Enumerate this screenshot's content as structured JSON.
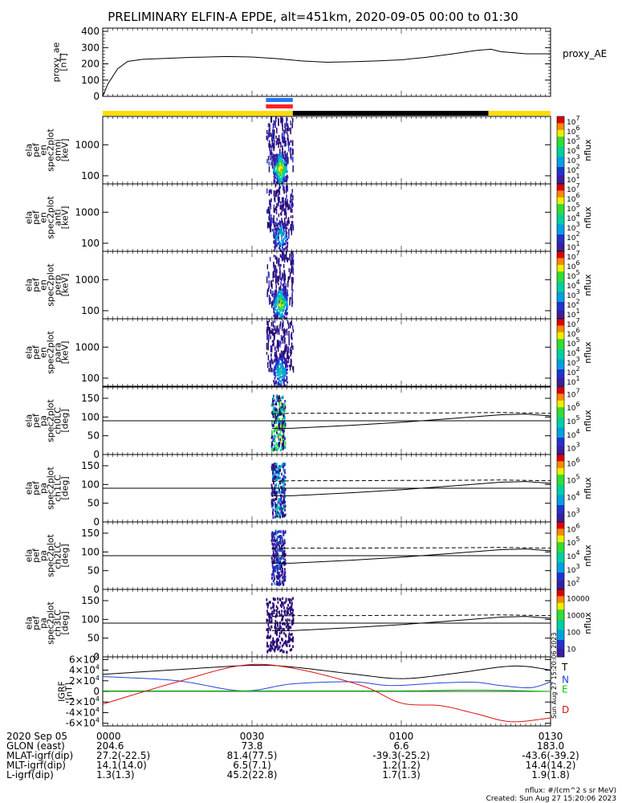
{
  "chart_data": {
    "type": "spectrogram",
    "title": "PRELIMINARY ELFIN-A EPDE, alt=451km, 2020-09-05 00:00 to 01:30",
    "time_axis": {
      "ticks": [
        "0000",
        "0030",
        "0100",
        "0130"
      ],
      "range_min": [
        0,
        90
      ]
    },
    "proxy_ae": {
      "ylabel": "proxy_ae\n[nT]",
      "legend": "proxy_AE",
      "yticks": [
        "0",
        "100",
        "200",
        "300",
        "400"
      ],
      "ylim": [
        0,
        420
      ],
      "points": [
        [
          0,
          0
        ],
        [
          1,
          75
        ],
        [
          3,
          170
        ],
        [
          5,
          215
        ],
        [
          8,
          228
        ],
        [
          12,
          233
        ],
        [
          18,
          240
        ],
        [
          25,
          245
        ],
        [
          30,
          242
        ],
        [
          35,
          232
        ],
        [
          40,
          218
        ],
        [
          45,
          210
        ],
        [
          50,
          213
        ],
        [
          55,
          218
        ],
        [
          60,
          225
        ],
        [
          65,
          240
        ],
        [
          70,
          260
        ],
        [
          75,
          282
        ],
        [
          78,
          290
        ],
        [
          80,
          275
        ],
        [
          85,
          262
        ],
        [
          90,
          262
        ]
      ]
    },
    "status_bar": {
      "segments": [
        {
          "from": 0,
          "to": 38.2,
          "color": "#ffdd00"
        },
        {
          "from": 38.2,
          "to": 77.5,
          "color": "#000000"
        },
        {
          "from": 77.5,
          "to": 90,
          "color": "#ffdd00"
        }
      ],
      "markers": [
        {
          "from": 32.8,
          "to": 38.2,
          "color": "#2277ff"
        },
        {
          "from": 32.8,
          "to": 38.2,
          "color": "#ff2020"
        }
      ]
    },
    "energy_panels": [
      {
        "label": [
          "ela",
          "pef",
          "en",
          "spec2plot",
          "omni",
          "[keV]"
        ],
        "yticks": [
          "100",
          "1000"
        ],
        "cbar_ticks": [
          "10^1",
          "10^2",
          "10^3",
          "10^4",
          "10^5",
          "10^6",
          "10^7"
        ],
        "cbar_label": "nflux"
      },
      {
        "label": [
          "ela",
          "pef",
          "en",
          "spec2plot",
          "anti",
          "[keV]"
        ],
        "yticks": [
          "100",
          "1000"
        ],
        "cbar_ticks": [
          "10^1",
          "10^2",
          "10^3",
          "10^4",
          "10^5",
          "10^6",
          "10^7"
        ],
        "cbar_label": "nflux"
      },
      {
        "label": [
          "ela",
          "pef",
          "en",
          "spec2plot",
          "perp",
          "[keV]"
        ],
        "yticks": [
          "100",
          "1000"
        ],
        "cbar_ticks": [
          "10^1",
          "10^2",
          "10^3",
          "10^4",
          "10^5",
          "10^6",
          "10^7"
        ],
        "cbar_label": "nflux"
      },
      {
        "label": [
          "ela",
          "pef",
          "en",
          "spec2plot",
          "para",
          "[keV]"
        ],
        "yticks": [
          "100",
          "1000"
        ],
        "cbar_ticks": [
          "10^1",
          "10^2",
          "10^3",
          "10^4",
          "10^5",
          "10^6",
          "10^7"
        ],
        "cbar_label": "nflux"
      }
    ],
    "pitch_panels": [
      {
        "label": [
          "ela",
          "pef",
          "pa",
          "spec2plot",
          "ch0LC",
          "[deg]"
        ],
        "yticks": [
          "0",
          "50",
          "100",
          "150"
        ],
        "cbar_ticks": [
          "10^3",
          "10^4",
          "10^5",
          "10^6",
          "10^7"
        ],
        "cbar_label": "nflux"
      },
      {
        "label": [
          "ela",
          "pef",
          "pa",
          "spec2plot",
          "ch1LC",
          "[deg]"
        ],
        "yticks": [
          "0",
          "50",
          "100",
          "150"
        ],
        "cbar_ticks": [
          "10^3",
          "10^4",
          "10^5",
          "10^6"
        ],
        "cbar_label": "nflux"
      },
      {
        "label": [
          "ela",
          "pef",
          "pa",
          "spec2plot",
          "ch2LC",
          "[deg]"
        ],
        "yticks": [
          "0",
          "50",
          "100",
          "150"
        ],
        "cbar_ticks": [
          "10^2",
          "10^3",
          "10^4",
          "10^5",
          "10^6"
        ],
        "cbar_label": "nflux"
      },
      {
        "label": [
          "ela",
          "pef",
          "pa",
          "spec2plot",
          "ch3LC",
          "[deg]"
        ],
        "yticks": [
          "0",
          "50",
          "100",
          "150"
        ],
        "cbar_ticks": [
          "10",
          "100",
          "1000",
          "10000"
        ],
        "cbar_label": "nflux"
      }
    ],
    "loss_cone": {
      "solid": [
        [
          34,
          70
        ],
        [
          38,
          70
        ],
        [
          50,
          78
        ],
        [
          60,
          86
        ],
        [
          70,
          96
        ],
        [
          80,
          106
        ],
        [
          85,
          108
        ],
        [
          90,
          103
        ]
      ],
      "dashed": [
        [
          34,
          108
        ],
        [
          38,
          110
        ],
        [
          50,
          110
        ],
        [
          60,
          111
        ],
        [
          70,
          111
        ],
        [
          80,
          112
        ],
        [
          90,
          110
        ]
      ]
    },
    "irf": {
      "ylabel": "IGRF\n[nT]",
      "yticks": [
        "6×10^4",
        "4×10^4",
        "2×10^4",
        "0",
        "-2×10^4",
        "-4×10^4",
        "-6×10^4"
      ],
      "ylim": [
        -65000,
        65000
      ],
      "series": [
        {
          "name": "T",
          "color": "#000000",
          "points": [
            [
              0,
              32000
            ],
            [
              15,
              41000
            ],
            [
              30,
              49000
            ],
            [
              38,
              46000
            ],
            [
              50,
              33000
            ],
            [
              60,
              24000
            ],
            [
              70,
              33000
            ],
            [
              80,
              46000
            ],
            [
              85,
              47000
            ],
            [
              90,
              40000
            ]
          ]
        },
        {
          "name": "N",
          "color": "#2244dd",
          "points": [
            [
              0,
              28000
            ],
            [
              15,
              20000
            ],
            [
              28,
              1000
            ],
            [
              38,
              14000
            ],
            [
              50,
              18000
            ],
            [
              58,
              11000
            ],
            [
              68,
              16000
            ],
            [
              75,
              17000
            ],
            [
              80,
              11000
            ],
            [
              86,
              7000
            ],
            [
              90,
              18000
            ]
          ]
        },
        {
          "name": "E",
          "color": "#00cc00",
          "points": [
            [
              0,
              1000
            ],
            [
              30,
              1000
            ],
            [
              60,
              1000
            ],
            [
              75,
              2500
            ],
            [
              90,
              0
            ]
          ]
        },
        {
          "name": "D",
          "color": "#dd1111",
          "points": [
            [
              0,
              -24000
            ],
            [
              15,
              18000
            ],
            [
              28,
              49000
            ],
            [
              38,
              44000
            ],
            [
              52,
              11000
            ],
            [
              60,
              -22000
            ],
            [
              68,
              -27000
            ],
            [
              75,
              -42000
            ],
            [
              82,
              -57000
            ],
            [
              90,
              -50000
            ]
          ]
        }
      ]
    },
    "footer": {
      "rows": [
        {
          "label": "2020 Sep 05",
          "values": [
            "0000",
            "0030",
            "0100",
            "0130"
          ]
        },
        {
          "label": "GLON (east)",
          "values": [
            "204.6",
            "73.8",
            "6.6",
            "183.0"
          ]
        },
        {
          "label": "MLAT-igrf(dip)",
          "values": [
            "27.2(-22.5)",
            "81.4(77.5)",
            "-39.3(-25.2)",
            "-43.6(-39.2)"
          ]
        },
        {
          "label": "MLT-igrf(dip)",
          "values": [
            "14.1(14.0)",
            "6.5(7.1)",
            "1.2(1.2)",
            "14.4(14.2)"
          ]
        },
        {
          "label": "L-igrf(dip)",
          "values": [
            "1.3(1.3)",
            "45.2(22.8)",
            "1.7(1.3)",
            "1.9(1.8)"
          ]
        }
      ],
      "units_note": "nflux: #/(cm^2 s sr MeV)",
      "created": "Created: Sun Aug 27 15:20:06 2023",
      "side_stamp": "Sun Aug 27 15:20:06 2023"
    }
  }
}
